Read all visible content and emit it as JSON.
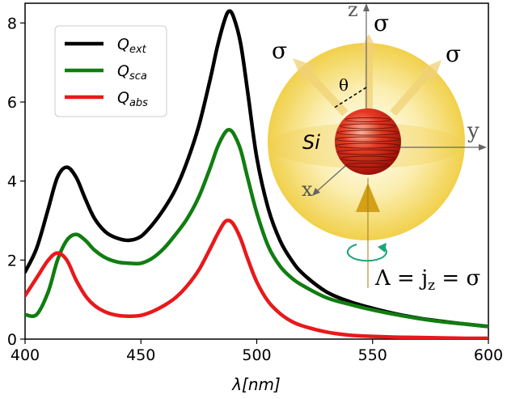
{
  "chart_data": {
    "type": "line",
    "xlabel": "λ[nm]",
    "ylabel": "",
    "xlim": [
      400,
      600
    ],
    "ylim": [
      0,
      8.5
    ],
    "xticks": [
      "400",
      "450",
      "500",
      "550",
      "600"
    ],
    "yticks": [
      "0",
      "2",
      "4",
      "6",
      "8"
    ],
    "grid": false,
    "legend_position": "top-left",
    "series": [
      {
        "name": "Q",
        "name_sub": "ext",
        "color": "#000000",
        "x": [
          400,
          405,
          410,
          414,
          418,
          422,
          426,
          430,
          435,
          440,
          445,
          450,
          455,
          460,
          465,
          470,
          475,
          480,
          483,
          486,
          488,
          490,
          493,
          496,
          500,
          505,
          510,
          515,
          520,
          530,
          540,
          550,
          560,
          570,
          580,
          590,
          600
        ],
        "y": [
          1.7,
          2.3,
          3.3,
          4.1,
          4.35,
          4.1,
          3.55,
          3.05,
          2.7,
          2.55,
          2.5,
          2.6,
          2.9,
          3.3,
          3.8,
          4.5,
          5.4,
          6.6,
          7.4,
          8.05,
          8.3,
          8.15,
          7.5,
          6.3,
          4.6,
          3.3,
          2.5,
          2.0,
          1.65,
          1.2,
          0.95,
          0.78,
          0.64,
          0.53,
          0.45,
          0.38,
          0.32
        ]
      },
      {
        "name": "Q",
        "name_sub": "sca",
        "color": "#107d10",
        "x": [
          400,
          405,
          410,
          414,
          418,
          422,
          426,
          430,
          435,
          440,
          445,
          450,
          455,
          460,
          465,
          470,
          475,
          480,
          483,
          486,
          488,
          490,
          493,
          496,
          500,
          505,
          510,
          515,
          520,
          530,
          540,
          550,
          560,
          570,
          580,
          590,
          600
        ],
        "y": [
          0.62,
          0.62,
          1.2,
          2.0,
          2.5,
          2.65,
          2.5,
          2.25,
          2.05,
          1.95,
          1.92,
          1.92,
          2.05,
          2.3,
          2.65,
          3.05,
          3.6,
          4.35,
          4.85,
          5.2,
          5.3,
          5.2,
          4.8,
          4.1,
          3.2,
          2.35,
          1.85,
          1.55,
          1.35,
          1.05,
          0.88,
          0.74,
          0.62,
          0.52,
          0.44,
          0.38,
          0.32
        ]
      },
      {
        "name": "Q",
        "name_sub": "abs",
        "color": "#e8191b",
        "x": [
          400,
          405,
          410,
          414,
          418,
          422,
          426,
          430,
          435,
          440,
          445,
          450,
          455,
          460,
          465,
          470,
          475,
          480,
          483,
          486,
          488,
          490,
          493,
          496,
          500,
          505,
          510,
          515,
          520,
          530,
          540,
          550,
          560,
          570,
          580,
          590,
          600
        ],
        "y": [
          1.1,
          1.55,
          2.0,
          2.18,
          2.0,
          1.5,
          1.1,
          0.85,
          0.68,
          0.6,
          0.58,
          0.6,
          0.7,
          0.85,
          1.05,
          1.35,
          1.75,
          2.3,
          2.65,
          2.95,
          3.0,
          2.9,
          2.55,
          2.05,
          1.45,
          0.95,
          0.65,
          0.45,
          0.33,
          0.18,
          0.1,
          0.07,
          0.05,
          0.04,
          0.03,
          0.02,
          0.02
        ]
      }
    ]
  },
  "inset": {
    "axis_z": "z",
    "axis_y": "y",
    "axis_x": "x",
    "sigma_top": "σ",
    "sigma_left": "σ",
    "sigma_right": "σ",
    "theta": "θ",
    "material": "Si",
    "helicity_equation": "Λ = j",
    "helicity_sub": "z",
    "helicity_rhs": " = σ",
    "sphere_color": "#e53a23",
    "halo_color": "#f3d24a",
    "beam_color": "#d4a017",
    "arrow_circle_color": "#1aa57a"
  }
}
